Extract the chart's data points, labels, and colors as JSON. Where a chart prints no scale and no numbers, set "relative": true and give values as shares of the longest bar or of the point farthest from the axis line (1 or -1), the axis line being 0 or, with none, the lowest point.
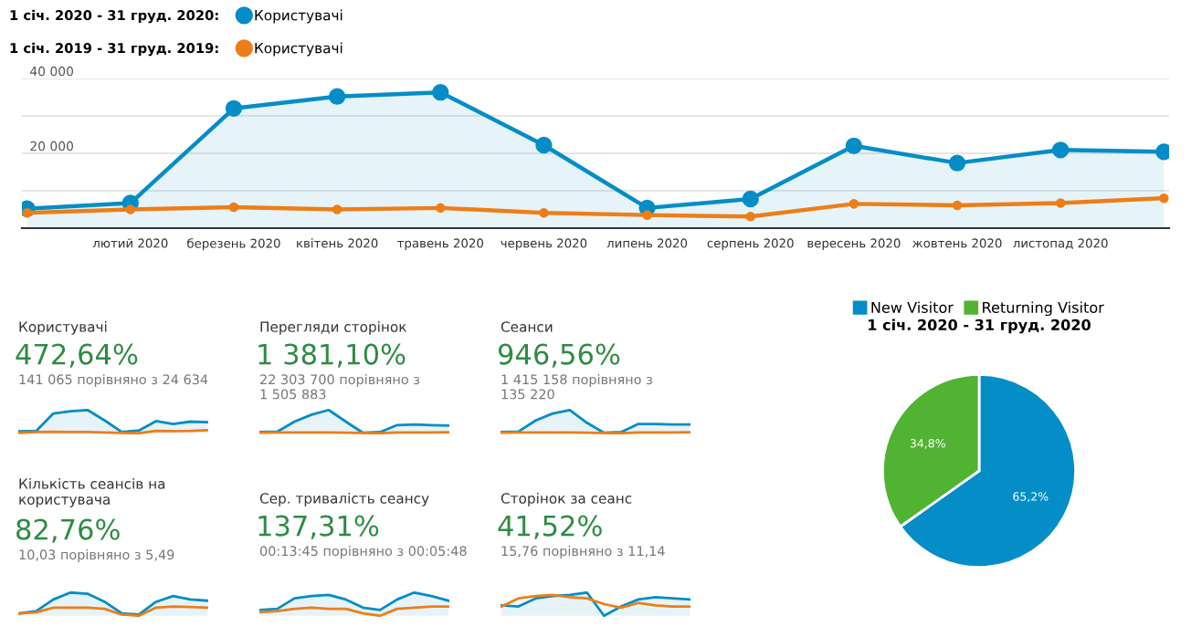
{
  "chart_data": [
    {
      "type": "line",
      "categories": [
        null,
        "лютий 2020",
        "березень 2020",
        "квітень 2020",
        "травень 2020",
        "червень 2020",
        "липень 2020",
        "серпень 2020",
        "вересень 2020",
        "жовтень 2020",
        "листопад 2020",
        null
      ],
      "series": [
        {
          "name": "Користувачі",
          "type": "area",
          "color": "#058dc7",
          "values": [
            5200,
            6700,
            32000,
            35200,
            36300,
            22200,
            5400,
            7800,
            22000,
            17400,
            20900,
            20400
          ]
        },
        {
          "name": "Користувачі",
          "type": "line",
          "color": "#ed7e17",
          "values": [
            4100,
            5000,
            5600,
            5000,
            5400,
            4100,
            3500,
            3100,
            6500,
            6100,
            6700,
            8000
          ]
        }
      ],
      "annotations": [
        "1 січ. 2020 - 31 груд. 2020:",
        "1 січ. 2019 - 31 груд. 2019:"
      ],
      "ylim": [
        0,
        40000
      ],
      "yticks": [
        {
          "value": 10000,
          "label": null
        },
        {
          "value": 20000,
          "label": "20 000"
        },
        {
          "value": 30000,
          "label": null
        },
        {
          "value": 40000,
          "label": "40 000"
        }
      ],
      "grid": "y",
      "legend": "top left",
      "marker": "circle",
      "line_style": "solid"
    },
    {
      "type": "line",
      "relative": true,
      "title": "Користувачі",
      "subtitle": "472,64%",
      "annotations": [
        "141 065 порівняно з 24 634"
      ],
      "categories": [
        null,
        null,
        null,
        null,
        null,
        null,
        null,
        null,
        null,
        null,
        null,
        null
      ],
      "series": [
        {
          "type": "area",
          "color": "#058dc7",
          "values": [
            0.08,
            0.1,
            0.85,
            0.95,
            1,
            0.55,
            0.05,
            0.12,
            0.52,
            0.4,
            0.5,
            0.48
          ]
        },
        {
          "type": "line",
          "color": "#ed7e17",
          "values": [
            0.02,
            0.05,
            0.06,
            0.05,
            0.05,
            0.03,
            0.01,
            0,
            0.1,
            0.09,
            0.1,
            0.13
          ]
        }
      ]
    },
    {
      "type": "line",
      "relative": true,
      "title": "Перегляди сторінок",
      "subtitle": "1 381,10%",
      "annotations": [
        "22 303 700 порівняно з\n1 505 883"
      ],
      "categories": [
        null,
        null,
        null,
        null,
        null,
        null,
        null,
        null,
        null,
        null,
        null,
        null
      ],
      "series": [
        {
          "type": "area",
          "color": "#058dc7",
          "values": [
            0.05,
            0.07,
            0.5,
            0.8,
            1,
            0.5,
            0.02,
            0.05,
            0.35,
            0.38,
            0.35,
            0.33
          ]
        },
        {
          "type": "line",
          "color": "#ed7e17",
          "values": [
            0.02,
            0.03,
            0.03,
            0.03,
            0.03,
            0.02,
            0.01,
            0,
            0.03,
            0.03,
            0.03,
            0.04
          ]
        }
      ]
    },
    {
      "type": "line",
      "relative": true,
      "title": "Сеанси",
      "subtitle": "946,56%",
      "annotations": [
        "1 415 158 порівняно з\n135 220"
      ],
      "categories": [
        null,
        null,
        null,
        null,
        null,
        null,
        null,
        null,
        null,
        null,
        null,
        null
      ],
      "series": [
        {
          "type": "area",
          "color": "#058dc7",
          "values": [
            0.05,
            0.07,
            0.55,
            0.85,
            1,
            0.45,
            0.02,
            0.05,
            0.4,
            0.4,
            0.38,
            0.38
          ]
        },
        {
          "type": "line",
          "color": "#ed7e17",
          "values": [
            0.02,
            0.03,
            0.03,
            0.03,
            0.03,
            0.02,
            0.01,
            0,
            0.03,
            0.03,
            0.03,
            0.04
          ]
        }
      ]
    },
    {
      "type": "line",
      "relative": true,
      "title": "Кількість сеансів на\nкористувача",
      "subtitle": "82,76%",
      "annotations": [
        "10,03 порівняно з 5,49"
      ],
      "categories": [
        null,
        null,
        null,
        null,
        null,
        null,
        null,
        null,
        null,
        null,
        null,
        null
      ],
      "series": [
        {
          "type": "area",
          "color": "#058dc7",
          "values": [
            0.1,
            0.2,
            0.7,
            1,
            0.95,
            0.6,
            0.1,
            0.05,
            0.6,
            0.85,
            0.7,
            0.65
          ]
        },
        {
          "type": "line",
          "color": "#ed7e17",
          "values": [
            0.1,
            0.15,
            0.35,
            0.35,
            0.35,
            0.3,
            0.05,
            0,
            0.35,
            0.4,
            0.38,
            0.35
          ]
        }
      ]
    },
    {
      "type": "line",
      "relative": true,
      "title": "Сер. тривалість сеансу",
      "subtitle": "137,31%",
      "annotations": [
        "00:13:45 порівняно з 00:05:48"
      ],
      "categories": [
        null,
        null,
        null,
        null,
        null,
        null,
        null,
        null,
        null,
        null,
        null,
        null
      ],
      "series": [
        {
          "type": "area",
          "color": "#058dc7",
          "values": [
            0.25,
            0.3,
            0.75,
            0.85,
            0.9,
            0.7,
            0.35,
            0.25,
            0.7,
            1,
            0.85,
            0.65
          ]
        },
        {
          "type": "line",
          "color": "#ed7e17",
          "values": [
            0.15,
            0.2,
            0.3,
            0.35,
            0.3,
            0.3,
            0.1,
            0,
            0.3,
            0.35,
            0.4,
            0.4
          ]
        }
      ]
    },
    {
      "type": "line",
      "relative": true,
      "title": "Сторінок за сеанс",
      "subtitle": "41,52%",
      "annotations": [
        "15,76 порівняно з 11,14"
      ],
      "categories": [
        null,
        null,
        null,
        null,
        null,
        null,
        null,
        null,
        null,
        null,
        null,
        null
      ],
      "series": [
        {
          "type": "area",
          "color": "#058dc7",
          "values": [
            0.45,
            0.4,
            0.75,
            0.85,
            0.9,
            1,
            0,
            0.4,
            0.7,
            0.8,
            0.75,
            0.7
          ]
        },
        {
          "type": "line",
          "color": "#ed7e17",
          "values": [
            0.4,
            0.75,
            0.85,
            0.9,
            0.8,
            0.75,
            0.5,
            0.35,
            0.55,
            0.45,
            0.4,
            0.4
          ]
        }
      ]
    },
    {
      "type": "pie",
      "title": "1 січ. 2020 - 31 груд. 2020",
      "categories": [
        "New Visitor",
        "Returning Visitor"
      ],
      "values": [
        65.2,
        34.8
      ],
      "colors": [
        "#058dc7",
        "#50b432"
      ],
      "value_labels": [
        "65,2%",
        "34,8%"
      ],
      "legend": "top"
    }
  ]
}
